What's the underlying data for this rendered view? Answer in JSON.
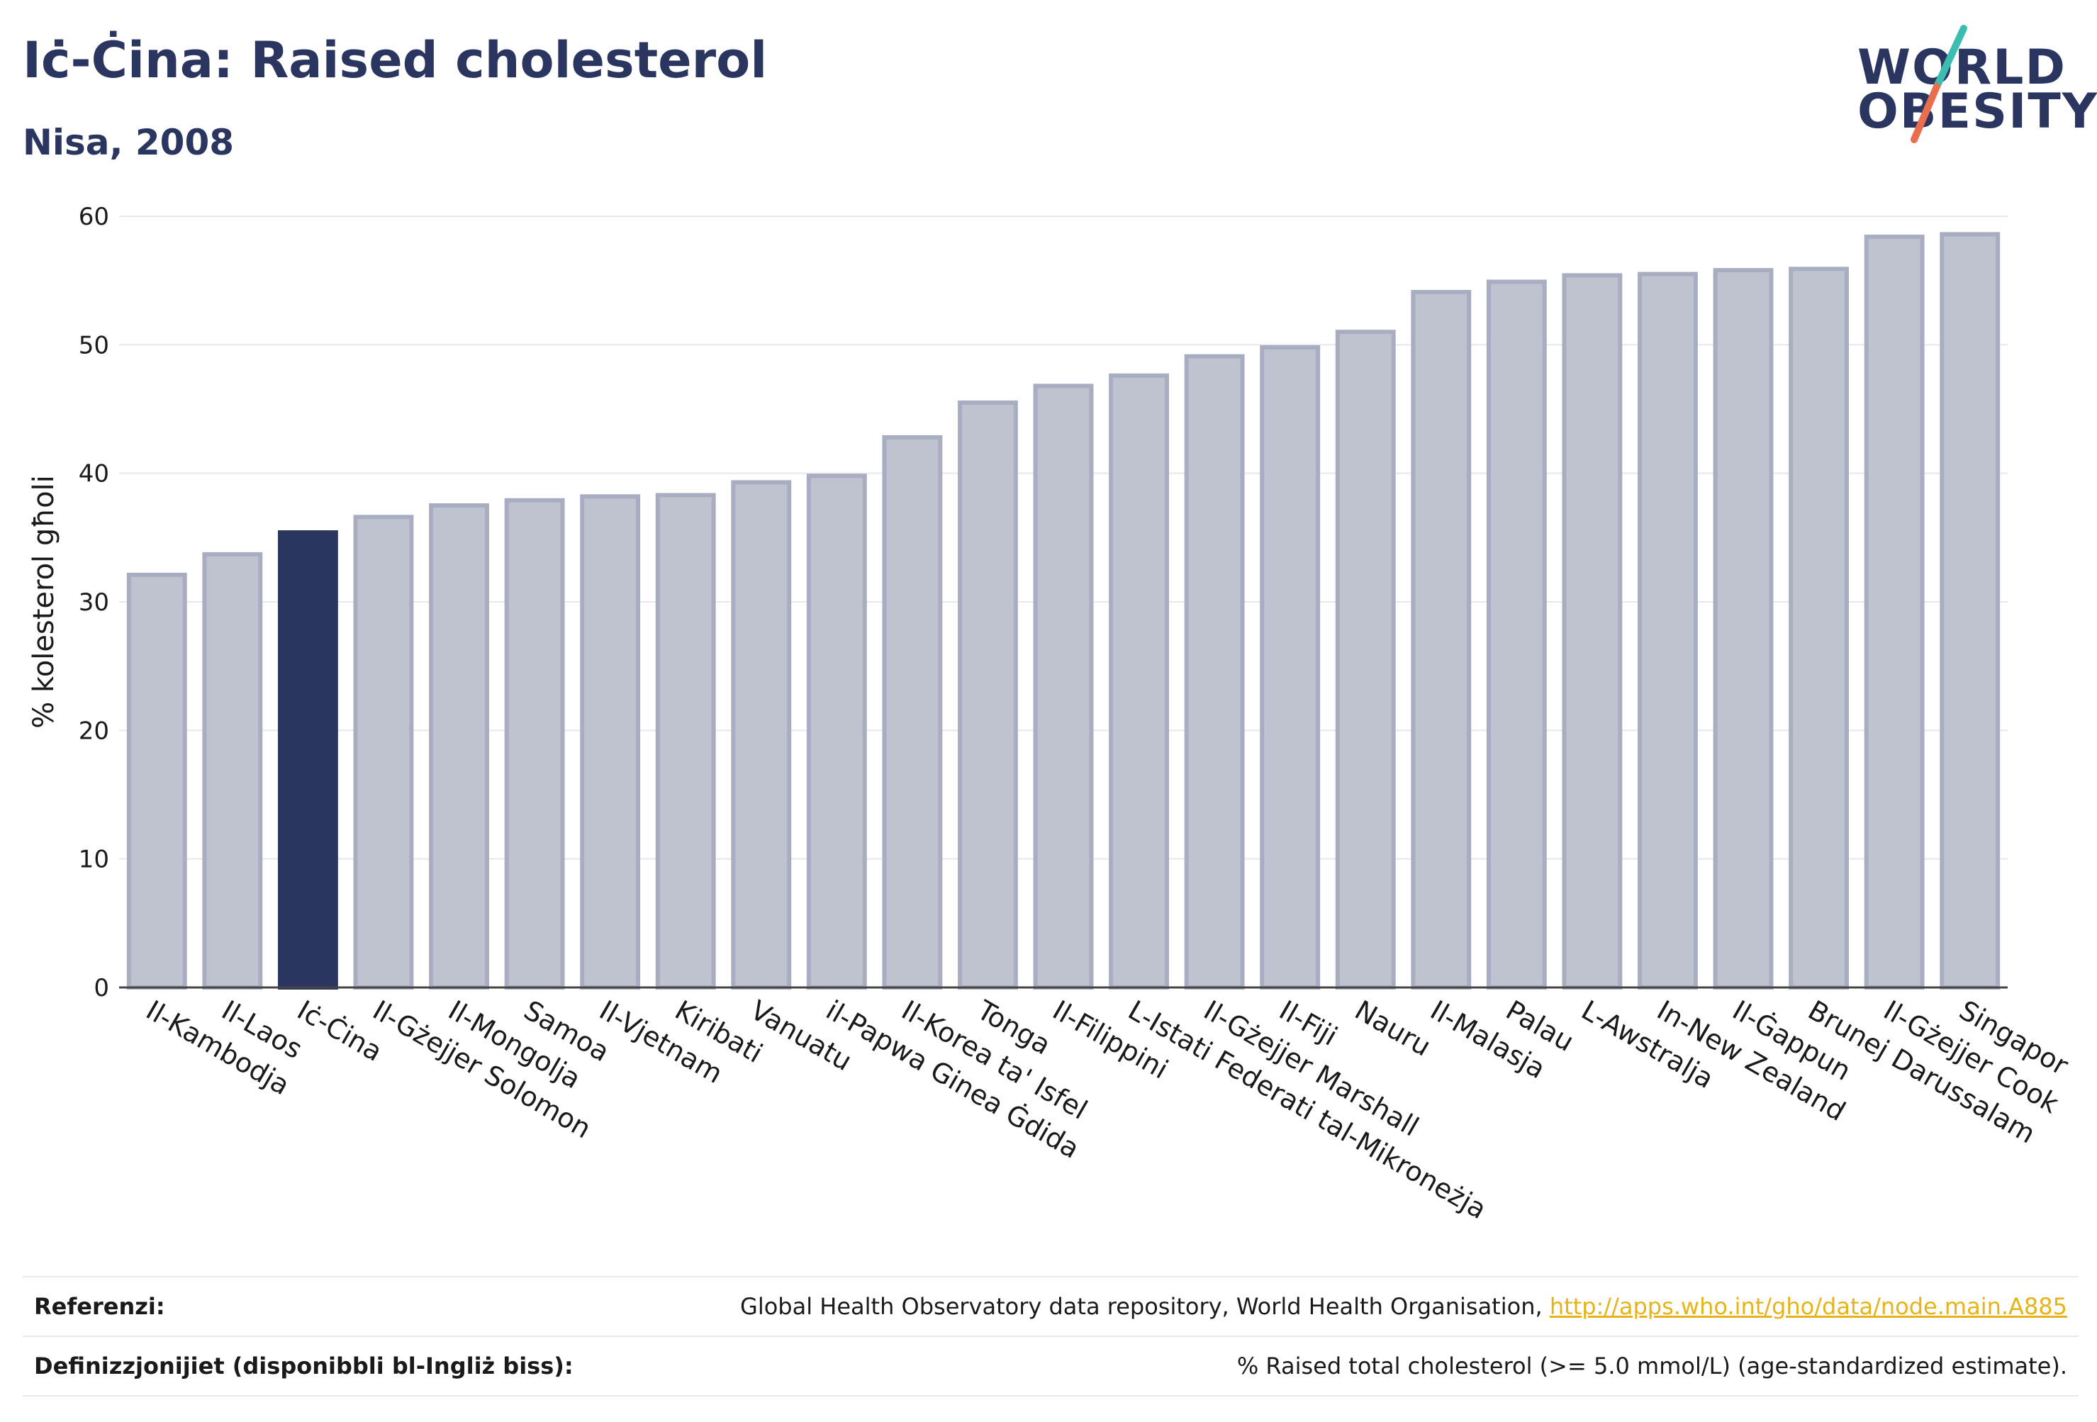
{
  "header": {
    "title": "Iċ-Ċina: Raised cholesterol",
    "subtitle": "Nisa, 2008"
  },
  "logo": {
    "line1": "WORLD",
    "line2": "OBESITY",
    "slash_colors": [
      "#3bbdb2",
      "#e86e4e"
    ]
  },
  "colors": {
    "bar_default": "#bfc3d0",
    "bar_border": "#a8adc1",
    "bar_highlight": "#2b3660",
    "grid": "#e6e8ee",
    "brand": "#2b3660",
    "link": "#e6b419"
  },
  "chart_data": {
    "type": "bar",
    "title": "Iċ-Ċina: Raised cholesterol",
    "subtitle": "Nisa, 2008",
    "xlabel": "",
    "ylabel": "% kolesterol għoli",
    "ylim": [
      0,
      60
    ],
    "yticks": [
      0,
      10,
      20,
      30,
      40,
      50,
      60
    ],
    "grid": true,
    "highlight": "Iċ-Ċina",
    "categories": [
      "Il-Kambodja",
      "Il-Laos",
      "Iċ-Ċina",
      "Il-Gżejjer Solomon",
      "Il-Mongolja",
      "Samoa",
      "Il-Vjetnam",
      "Kiribati",
      "Vanuatu",
      "il-Papwa Ginea Ġdida",
      "Il-Korea ta' Isfel",
      "Tonga",
      "Il-Filippini",
      "L-Istati Federati tal-Mikroneżja",
      "Il-Gżejjer Marshall",
      "Il-Fiji",
      "Nauru",
      "Il-Malasja",
      "Palau",
      "L-Awstralja",
      "In-New Zealand",
      "Il-Ġappun",
      "Brunej Darussalam",
      "Il-Gżejjer Cook",
      "Singapor"
    ],
    "values": [
      32.1,
      33.7,
      35.4,
      36.6,
      37.5,
      37.9,
      38.2,
      38.3,
      39.3,
      39.8,
      42.8,
      45.5,
      46.8,
      47.6,
      49.1,
      49.8,
      51.0,
      54.1,
      54.9,
      55.4,
      55.5,
      55.8,
      55.9,
      58.4,
      58.6
    ]
  },
  "footer": {
    "references_label": "Referenzi:",
    "references_text": "Global Health Observatory data repository, World Health Organisation, ",
    "references_link": "http://apps.who.int/gho/data/node.main.A885",
    "definitions_label": "Definizzjonijiet (disponibbli bl-Ingliż biss):",
    "definitions_text": "% Raised total cholesterol (>= 5.0 mmol/L) (age-standardized estimate)."
  }
}
